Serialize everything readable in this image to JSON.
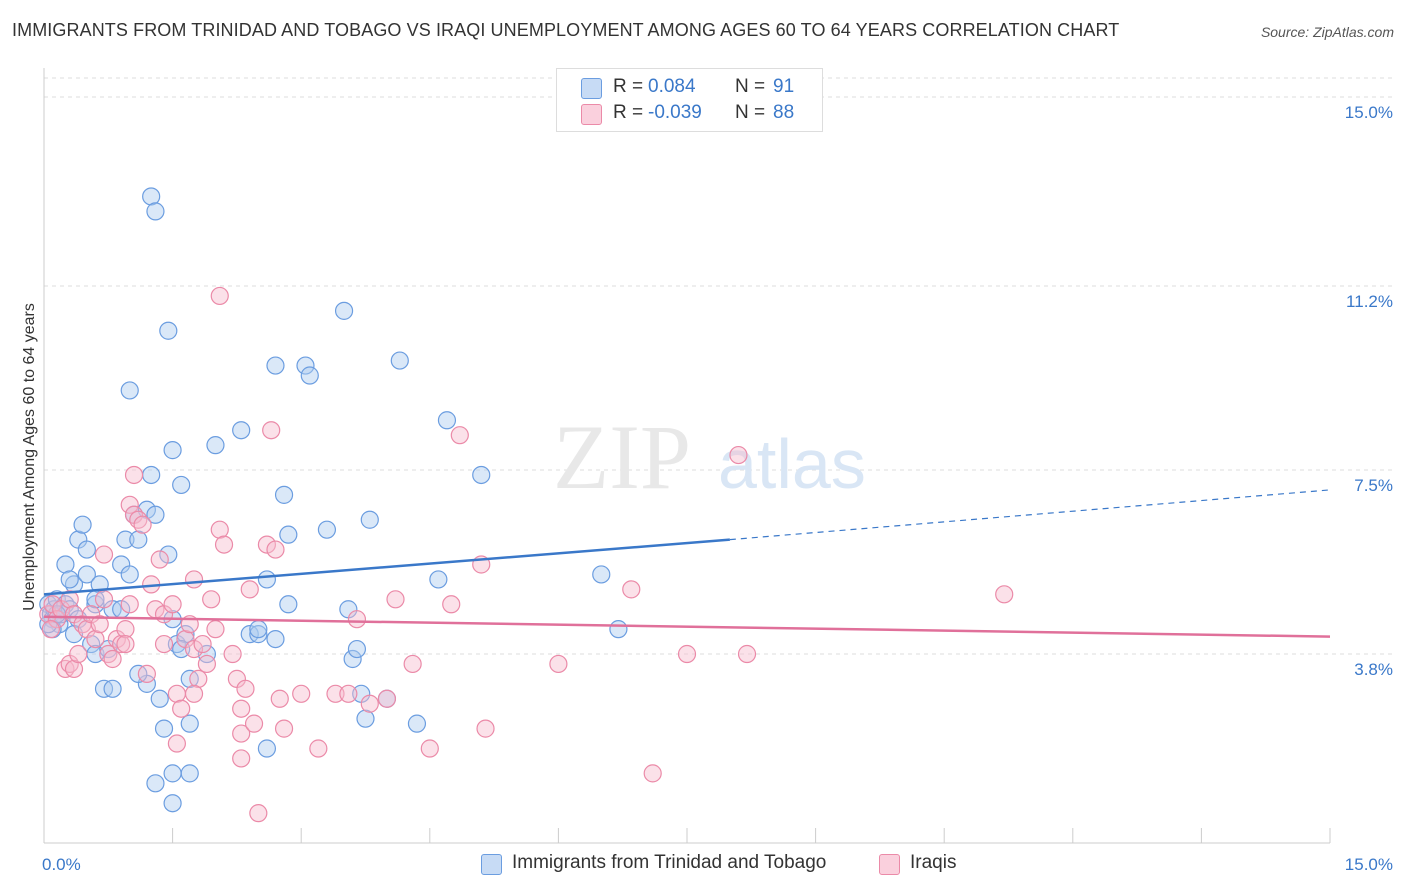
{
  "title": "IMMIGRANTS FROM TRINIDAD AND TOBAGO VS IRAQI UNEMPLOYMENT AMONG AGES 60 TO 64 YEARS CORRELATION CHART",
  "source": "Source: ZipAtlas.com",
  "watermark": {
    "zip": "ZIP",
    "atlas": "atlas"
  },
  "legend": {
    "r_label": "R =",
    "n_label": "N =",
    "series": [
      {
        "name": "Immigrants from Trinidad and Tobago",
        "r": "0.084",
        "n": "91",
        "fill": "#aecbf0",
        "stroke": "#6b9de0"
      },
      {
        "name": "Iraqis",
        "r": "-0.039",
        "n": "88",
        "fill": "#f7bccf",
        "stroke": "#eb8aa8"
      }
    ]
  },
  "colors": {
    "blue_line": "#3a78c9",
    "pink_line": "#e0709a",
    "axis_label": "#3a78c9",
    "grid": "#dddddd"
  },
  "chart_data": {
    "type": "scatter",
    "title": "IMMIGRANTS FROM TRINIDAD AND TOBAGO VS IRAQI UNEMPLOYMENT AMONG AGES 60 TO 64 YEARS CORRELATION CHART",
    "xlabel": "",
    "ylabel": "Unemployment Among Ages 60 to 64 years",
    "xlim": [
      0,
      15
    ],
    "ylim": [
      0,
      15.5
    ],
    "x_tick_labels": [
      "0.0%",
      "15.0%"
    ],
    "y_ticks": [
      3.8,
      7.5,
      11.2,
      15.0
    ],
    "y_tick_labels": [
      "3.8%",
      "7.5%",
      "11.2%",
      "15.0%"
    ],
    "series": [
      {
        "name": "Immigrants from Trinidad and Tobago",
        "color": "#6b9de0",
        "trend": {
          "x0": 0,
          "y0": 5.0,
          "x1": 8.0,
          "y1": 6.1,
          "dashed_to_x": 15.0,
          "dashed_to_y": 7.1
        },
        "points": [
          [
            0.05,
            4.8
          ],
          [
            0.08,
            4.6
          ],
          [
            0.1,
            4.5
          ],
          [
            0.12,
            4.7
          ],
          [
            0.15,
            4.9
          ],
          [
            0.18,
            4.4
          ],
          [
            0.2,
            4.6
          ],
          [
            0.25,
            4.8
          ],
          [
            0.1,
            4.3
          ],
          [
            0.3,
            4.7
          ],
          [
            0.05,
            4.4
          ],
          [
            0.15,
            4.6
          ],
          [
            0.35,
            5.2
          ],
          [
            0.4,
            6.1
          ],
          [
            0.5,
            5.4
          ],
          [
            0.45,
            6.4
          ],
          [
            0.6,
            4.8
          ],
          [
            0.65,
            5.2
          ],
          [
            0.8,
            4.7
          ],
          [
            0.55,
            4.0
          ],
          [
            0.6,
            3.8
          ],
          [
            0.75,
            3.9
          ],
          [
            0.7,
            3.1
          ],
          [
            0.8,
            3.1
          ],
          [
            0.5,
            5.9
          ],
          [
            0.25,
            5.6
          ],
          [
            0.3,
            5.3
          ],
          [
            0.4,
            4.5
          ],
          [
            0.6,
            4.9
          ],
          [
            0.9,
            5.6
          ],
          [
            0.95,
            6.1
          ],
          [
            0.9,
            4.7
          ],
          [
            1.05,
            6.6
          ],
          [
            1.1,
            6.1
          ],
          [
            1.2,
            6.7
          ],
          [
            1.25,
            7.4
          ],
          [
            1.3,
            6.6
          ],
          [
            1.45,
            5.8
          ],
          [
            1.5,
            4.5
          ],
          [
            1.55,
            4.0
          ],
          [
            1.65,
            4.2
          ],
          [
            1.0,
            5.4
          ],
          [
            1.0,
            9.1
          ],
          [
            1.25,
            13.0
          ],
          [
            1.3,
            12.7
          ],
          [
            1.45,
            10.3
          ],
          [
            1.5,
            7.9
          ],
          [
            1.6,
            7.2
          ],
          [
            1.6,
            3.9
          ],
          [
            1.7,
            3.3
          ],
          [
            1.4,
            2.3
          ],
          [
            1.5,
            1.4
          ],
          [
            1.5,
            0.8
          ],
          [
            1.7,
            2.4
          ],
          [
            1.7,
            1.4
          ],
          [
            1.3,
            1.2
          ],
          [
            1.35,
            2.9
          ],
          [
            1.2,
            3.2
          ],
          [
            1.1,
            3.4
          ],
          [
            1.9,
            3.8
          ],
          [
            2.0,
            8.0
          ],
          [
            2.3,
            8.3
          ],
          [
            2.4,
            4.2
          ],
          [
            2.5,
            4.2
          ],
          [
            2.6,
            5.3
          ],
          [
            2.6,
            1.9
          ],
          [
            2.8,
            7.0
          ],
          [
            2.85,
            6.2
          ],
          [
            2.85,
            4.8
          ],
          [
            2.7,
            9.6
          ],
          [
            3.05,
            9.6
          ],
          [
            3.1,
            9.4
          ],
          [
            3.3,
            6.3
          ],
          [
            3.5,
            10.7
          ],
          [
            3.55,
            4.7
          ],
          [
            3.6,
            3.7
          ],
          [
            3.65,
            3.9
          ],
          [
            3.7,
            3.0
          ],
          [
            3.75,
            2.5
          ],
          [
            3.8,
            6.5
          ],
          [
            4.0,
            2.9
          ],
          [
            4.15,
            9.7
          ],
          [
            4.35,
            2.4
          ],
          [
            4.6,
            5.3
          ],
          [
            4.7,
            8.5
          ],
          [
            5.1,
            7.4
          ],
          [
            6.5,
            5.4
          ],
          [
            6.7,
            4.3
          ],
          [
            2.7,
            4.1
          ],
          [
            2.5,
            4.3
          ],
          [
            0.35,
            4.2
          ]
        ]
      },
      {
        "name": "Iraqis",
        "color": "#eb8aa8",
        "trend": {
          "x0": 0,
          "y0": 4.55,
          "x1": 15.0,
          "y1": 4.15
        },
        "points": [
          [
            0.05,
            4.6
          ],
          [
            0.1,
            4.8
          ],
          [
            0.15,
            4.5
          ],
          [
            0.2,
            4.7
          ],
          [
            0.08,
            4.3
          ],
          [
            0.3,
            4.9
          ],
          [
            0.35,
            4.6
          ],
          [
            0.25,
            3.5
          ],
          [
            0.3,
            3.6
          ],
          [
            0.35,
            3.5
          ],
          [
            0.4,
            3.8
          ],
          [
            0.45,
            4.4
          ],
          [
            0.5,
            4.3
          ],
          [
            0.55,
            4.6
          ],
          [
            0.6,
            4.1
          ],
          [
            0.65,
            4.4
          ],
          [
            0.7,
            4.9
          ],
          [
            0.75,
            3.8
          ],
          [
            0.7,
            5.8
          ],
          [
            0.8,
            3.7
          ],
          [
            0.85,
            4.1
          ],
          [
            0.9,
            4.0
          ],
          [
            0.95,
            4.3
          ],
          [
            1.0,
            6.8
          ],
          [
            1.05,
            6.6
          ],
          [
            1.1,
            6.5
          ],
          [
            1.15,
            6.4
          ],
          [
            1.05,
            7.4
          ],
          [
            1.0,
            4.8
          ],
          [
            0.95,
            4.0
          ],
          [
            1.2,
            3.4
          ],
          [
            1.25,
            5.2
          ],
          [
            1.3,
            4.7
          ],
          [
            1.4,
            4.6
          ],
          [
            1.5,
            4.8
          ],
          [
            1.4,
            4.0
          ],
          [
            1.35,
            5.7
          ],
          [
            1.55,
            3.0
          ],
          [
            1.6,
            2.7
          ],
          [
            1.55,
            2.0
          ],
          [
            1.65,
            4.1
          ],
          [
            1.7,
            4.4
          ],
          [
            1.75,
            3.9
          ],
          [
            1.75,
            5.3
          ],
          [
            1.8,
            3.3
          ],
          [
            1.85,
            4.0
          ],
          [
            1.9,
            3.6
          ],
          [
            1.95,
            4.9
          ],
          [
            2.0,
            4.3
          ],
          [
            2.05,
            6.3
          ],
          [
            2.1,
            6.0
          ],
          [
            2.2,
            3.8
          ],
          [
            2.25,
            3.3
          ],
          [
            2.3,
            2.7
          ],
          [
            2.3,
            2.2
          ],
          [
            2.35,
            3.1
          ],
          [
            2.4,
            5.1
          ],
          [
            2.45,
            2.4
          ],
          [
            2.6,
            6.0
          ],
          [
            2.75,
            2.9
          ],
          [
            2.8,
            2.3
          ],
          [
            2.65,
            8.3
          ],
          [
            2.7,
            5.9
          ],
          [
            3.0,
            3.0
          ],
          [
            3.2,
            1.9
          ],
          [
            3.4,
            3.0
          ],
          [
            3.55,
            3.0
          ],
          [
            3.65,
            4.5
          ],
          [
            3.8,
            2.8
          ],
          [
            4.0,
            2.9
          ],
          [
            4.1,
            4.9
          ],
          [
            4.3,
            3.6
          ],
          [
            4.5,
            1.9
          ],
          [
            4.75,
            4.8
          ],
          [
            4.85,
            8.2
          ],
          [
            5.1,
            5.6
          ],
          [
            5.15,
            2.3
          ],
          [
            6.0,
            3.6
          ],
          [
            6.85,
            5.1
          ],
          [
            7.1,
            1.4
          ],
          [
            7.5,
            3.8
          ],
          [
            8.1,
            7.8
          ],
          [
            8.2,
            3.8
          ],
          [
            11.2,
            5.0
          ],
          [
            2.05,
            11.0
          ],
          [
            2.3,
            1.7
          ],
          [
            2.5,
            0.6
          ],
          [
            1.75,
            3.0
          ]
        ]
      }
    ]
  }
}
